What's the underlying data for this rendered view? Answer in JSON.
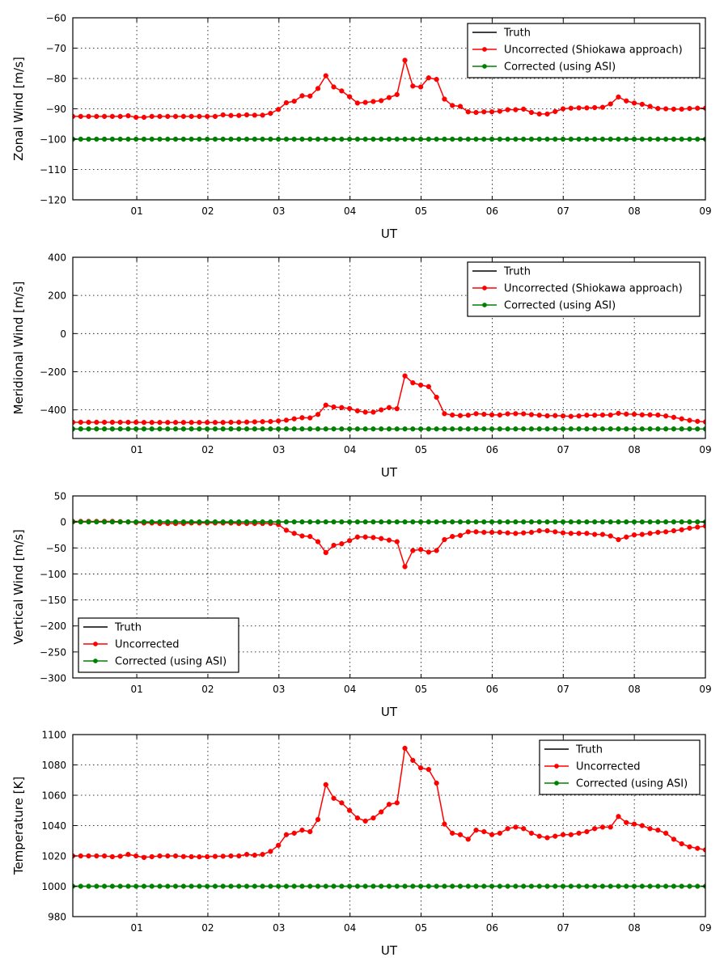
{
  "chart_data": [
    {
      "type": "line",
      "ylabel": "Zonal Wind [m/s]",
      "xlabel": "UT",
      "xlim": [
        0.1,
        9
      ],
      "ylim": [
        -120,
        -60
      ],
      "xticks": [
        1,
        2,
        3,
        4,
        5,
        6,
        7,
        8,
        9
      ],
      "xtick_labels": [
        "01",
        "02",
        "03",
        "04",
        "05",
        "06",
        "07",
        "08",
        "09"
      ],
      "yticks": [
        -120,
        -110,
        -100,
        -90,
        -80,
        -70,
        -60
      ],
      "ytick_labels": [
        "−120",
        "−110",
        "−100",
        "−90",
        "−80",
        "−70",
        "−60"
      ],
      "grid": true,
      "legend_position": "top-right",
      "series": [
        {
          "name": "Truth",
          "color": "#000000",
          "markers": false,
          "constant": -100
        },
        {
          "name": "Uncorrected (Shiokawa approach)",
          "color": "#ff0000",
          "markers": true,
          "values": [
            -92.5,
            -92.5,
            -92.5,
            -92.5,
            -92.5,
            -92.5,
            -92.5,
            -92.3,
            -92.8,
            -92.8,
            -92.5,
            -92.5,
            -92.5,
            -92.5,
            -92.5,
            -92.5,
            -92.5,
            -92.5,
            -92.5,
            -92.0,
            -92.2,
            -92.2,
            -92.0,
            -92.1,
            -92.1,
            -91.5,
            -90.2,
            -88.0,
            -87.5,
            -85.7,
            -85.8,
            -83.3,
            -79.1,
            -82.8,
            -84.1,
            -86.0,
            -88.1,
            -87.9,
            -87.6,
            -87.3,
            -86.3,
            -85.3,
            -74.0,
            -82.5,
            -82.8,
            -79.8,
            -80.3,
            -86.8,
            -88.9,
            -89.2,
            -91.0,
            -91.2,
            -91.0,
            -91.0,
            -90.8,
            -90.3,
            -90.3,
            -90.1,
            -91.2,
            -91.7,
            -91.7,
            -90.9,
            -90.0,
            -89.8,
            -89.7,
            -89.7,
            -89.6,
            -89.5,
            -88.4,
            -86.1,
            -87.4,
            -88.1,
            -88.5,
            -89.2,
            -89.9,
            -90.0,
            -90.1,
            -90.1,
            -89.9,
            -89.8,
            -89.8
          ]
        },
        {
          "name": "Corrected (using ASI)",
          "color": "#008000",
          "markers": true,
          "constant": -100
        }
      ]
    },
    {
      "type": "line",
      "ylabel": "Meridional Wind [m/s]",
      "xlabel": "UT",
      "xlim": [
        0.1,
        9
      ],
      "ylim": [
        -550,
        400
      ],
      "xticks": [
        1,
        2,
        3,
        4,
        5,
        6,
        7,
        8,
        9
      ],
      "xtick_labels": [
        "01",
        "02",
        "03",
        "04",
        "05",
        "06",
        "07",
        "08",
        "09"
      ],
      "yticks": [
        -400,
        -200,
        0,
        200,
        400
      ],
      "ytick_labels": [
        "−400",
        "−200",
        "0",
        "200",
        "400"
      ],
      "grid": true,
      "legend_position": "top-right",
      "series": [
        {
          "name": "Truth",
          "color": "#000000",
          "markers": false,
          "constant": -500
        },
        {
          "name": "Uncorrected (Shiokawa approach)",
          "color": "#ff0000",
          "markers": true,
          "values": [
            -465,
            -465,
            -465,
            -465,
            -465,
            -465,
            -465,
            -465,
            -465,
            -466,
            -466,
            -466,
            -466,
            -466,
            -466,
            -466,
            -466,
            -466,
            -466,
            -466,
            -465,
            -465,
            -464,
            -463,
            -462,
            -461,
            -458,
            -454,
            -447,
            -441,
            -442,
            -424,
            -375,
            -385,
            -388,
            -393,
            -405,
            -412,
            -412,
            -400,
            -388,
            -394,
            -222,
            -258,
            -270,
            -278,
            -334,
            -420,
            -427,
            -430,
            -428,
            -420,
            -423,
            -426,
            -427,
            -421,
            -420,
            -421,
            -425,
            -428,
            -431,
            -430,
            -432,
            -434,
            -432,
            -428,
            -428,
            -427,
            -427,
            -418,
            -422,
            -423,
            -426,
            -426,
            -427,
            -432,
            -439,
            -447,
            -455,
            -460,
            -463
          ]
        },
        {
          "name": "Corrected (using ASI)",
          "color": "#008000",
          "markers": true,
          "constant": -500
        }
      ]
    },
    {
      "type": "line",
      "ylabel": "Vertical Wind [m/s]",
      "xlabel": "UT",
      "xlim": [
        0.1,
        9
      ],
      "ylim": [
        -300,
        50
      ],
      "xticks": [
        1,
        2,
        3,
        4,
        5,
        6,
        7,
        8,
        9
      ],
      "xtick_labels": [
        "01",
        "02",
        "03",
        "04",
        "05",
        "06",
        "07",
        "08",
        "09"
      ],
      "yticks": [
        -300,
        -250,
        -200,
        -150,
        -100,
        -50,
        0,
        50
      ],
      "ytick_labels": [
        "−300",
        "−250",
        "−200",
        "−150",
        "−100",
        "−50",
        "0",
        "50"
      ],
      "grid": true,
      "legend_position": "bottom-left",
      "series": [
        {
          "name": "Truth",
          "color": "#000000",
          "markers": false,
          "constant": 0
        },
        {
          "name": "Uncorrected",
          "color": "#ff0000",
          "markers": true,
          "values": [
            1,
            1,
            1,
            1,
            1,
            1,
            0.5,
            0,
            -1,
            -2,
            -2,
            -3,
            -3,
            -3,
            -3,
            -2,
            -2,
            -2,
            -2,
            -2,
            -2,
            -3,
            -3,
            -3,
            -3,
            -3,
            -5,
            -16,
            -22,
            -27,
            -28,
            -38,
            -59,
            -45,
            -42,
            -36,
            -29,
            -29,
            -30,
            -32,
            -35,
            -38,
            -86,
            -55,
            -53,
            -58,
            -55,
            -34,
            -28,
            -26,
            -19,
            -19,
            -20,
            -20,
            -20,
            -21,
            -22,
            -21,
            -20,
            -17,
            -17,
            -19,
            -21,
            -22,
            -22,
            -22,
            -24,
            -24,
            -27,
            -34,
            -29,
            -25,
            -24,
            -22,
            -20,
            -19,
            -17,
            -15,
            -12,
            -10,
            -8
          ]
        },
        {
          "name": "Corrected (using ASI)",
          "color": "#008000",
          "markers": true,
          "constant": 0
        }
      ]
    },
    {
      "type": "line",
      "ylabel": "Temperature [K]",
      "xlabel": "UT",
      "xlim": [
        0.1,
        9
      ],
      "ylim": [
        980,
        1100
      ],
      "xticks": [
        1,
        2,
        3,
        4,
        5,
        6,
        7,
        8,
        9
      ],
      "xtick_labels": [
        "01",
        "02",
        "03",
        "04",
        "05",
        "06",
        "07",
        "08",
        "09"
      ],
      "yticks": [
        980,
        1000,
        1020,
        1040,
        1060,
        1080,
        1100
      ],
      "ytick_labels": [
        "980",
        "1000",
        "1020",
        "1040",
        "1060",
        "1080",
        "1100"
      ],
      "grid": true,
      "legend_position": "top-right",
      "series": [
        {
          "name": "Truth",
          "color": "#000000",
          "markers": false,
          "constant": 1000
        },
        {
          "name": "Uncorrected",
          "color": "#ff0000",
          "markers": true,
          "values": [
            1020,
            1020,
            1020,
            1020,
            1020,
            1019.5,
            1019.8,
            1021,
            1020,
            1019,
            1019.5,
            1020,
            1020,
            1020,
            1019.6,
            1019.5,
            1019.4,
            1019.5,
            1019.7,
            1019.8,
            1020,
            1020,
            1021,
            1020.5,
            1021,
            1023,
            1027,
            1034,
            1035,
            1037,
            1036,
            1044,
            1067,
            1058,
            1055,
            1050,
            1045,
            1043,
            1045,
            1049,
            1054,
            1055,
            1091,
            1083,
            1078,
            1077,
            1068,
            1041,
            1035,
            1034,
            1031,
            1037,
            1036,
            1034,
            1035,
            1038,
            1039,
            1038,
            1035,
            1033,
            1032,
            1033,
            1034,
            1034,
            1035,
            1036,
            1038,
            1039,
            1039,
            1046,
            1042,
            1041,
            1040,
            1038,
            1037,
            1035,
            1031,
            1028,
            1026,
            1025,
            1024
          ]
        },
        {
          "name": "Corrected (using ASI)",
          "color": "#008000",
          "markers": true,
          "constant": 1000
        }
      ]
    }
  ]
}
